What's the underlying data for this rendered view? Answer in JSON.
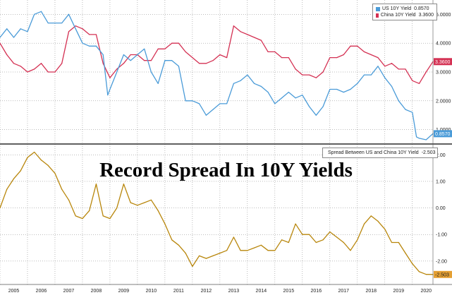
{
  "colors": {
    "us": "#4A9BD8",
    "china": "#D43153",
    "spread": "#B8860B",
    "grid": "#7a7a7a",
    "divider": "#000000",
    "spread_tag": "#E5A033"
  },
  "chart_data": [
    {
      "type": "line",
      "legend_position": "top-right",
      "grid": true,
      "xlim": [
        2005.0,
        2020.75
      ],
      "ylim": [
        0.6,
        5.4
      ],
      "y_ticks": [
        5.0,
        4.0,
        3.0,
        2.0,
        1.0
      ],
      "y_tick_labels": [
        "5.0000",
        "4.0000",
        "3.0000",
        "2.0000",
        "1.0000"
      ],
      "series": [
        {
          "name": "US 10Y Yield",
          "last_value": "0.8570",
          "last_tag": "0.8570",
          "x": [
            2005.0,
            2005.25,
            2005.5,
            2005.75,
            2006.0,
            2006.25,
            2006.5,
            2006.75,
            2007.0,
            2007.25,
            2007.5,
            2007.75,
            2008.0,
            2008.25,
            2008.5,
            2008.75,
            2008.92,
            2009.0,
            2009.25,
            2009.5,
            2009.75,
            2010.0,
            2010.25,
            2010.5,
            2010.75,
            2011.0,
            2011.25,
            2011.5,
            2011.75,
            2012.0,
            2012.25,
            2012.5,
            2012.75,
            2013.0,
            2013.25,
            2013.5,
            2013.75,
            2014.0,
            2014.25,
            2014.5,
            2014.75,
            2015.0,
            2015.25,
            2015.5,
            2015.75,
            2016.0,
            2016.25,
            2016.5,
            2016.75,
            2017.0,
            2017.25,
            2017.5,
            2017.75,
            2018.0,
            2018.25,
            2018.5,
            2018.75,
            2019.0,
            2019.25,
            2019.5,
            2019.75,
            2020.0,
            2020.15,
            2020.25,
            2020.5,
            2020.75
          ],
          "y": [
            4.2,
            4.5,
            4.2,
            4.5,
            4.4,
            5.0,
            5.1,
            4.7,
            4.7,
            4.7,
            5.0,
            4.5,
            4.0,
            3.9,
            3.9,
            3.6,
            2.2,
            2.4,
            3.0,
            3.6,
            3.4,
            3.6,
            3.8,
            3.0,
            2.6,
            3.4,
            3.4,
            3.2,
            2.0,
            2.0,
            1.9,
            1.5,
            1.7,
            1.9,
            1.9,
            2.6,
            2.7,
            2.9,
            2.6,
            2.5,
            2.3,
            1.9,
            2.1,
            2.3,
            2.1,
            2.2,
            1.8,
            1.5,
            1.8,
            2.4,
            2.4,
            2.3,
            2.4,
            2.6,
            2.9,
            2.9,
            3.2,
            2.8,
            2.5,
            2.0,
            1.7,
            1.6,
            0.75,
            0.7,
            0.65,
            0.86
          ]
        },
        {
          "name": "China 10Y Yield",
          "last_value": "3.3600",
          "last_tag": "3.3600",
          "x": [
            2005.0,
            2005.25,
            2005.5,
            2005.75,
            2006.0,
            2006.25,
            2006.5,
            2006.75,
            2007.0,
            2007.25,
            2007.5,
            2007.75,
            2008.0,
            2008.25,
            2008.5,
            2008.75,
            2009.0,
            2009.25,
            2009.5,
            2009.75,
            2010.0,
            2010.25,
            2010.5,
            2010.75,
            2011.0,
            2011.25,
            2011.5,
            2011.75,
            2012.0,
            2012.25,
            2012.5,
            2012.75,
            2013.0,
            2013.25,
            2013.5,
            2013.75,
            2014.0,
            2014.25,
            2014.5,
            2014.75,
            2015.0,
            2015.25,
            2015.5,
            2015.75,
            2016.0,
            2016.25,
            2016.5,
            2016.75,
            2017.0,
            2017.25,
            2017.5,
            2017.75,
            2018.0,
            2018.25,
            2018.5,
            2018.75,
            2019.0,
            2019.25,
            2019.5,
            2019.75,
            2020.0,
            2020.25,
            2020.5,
            2020.75
          ],
          "y": [
            4.0,
            3.6,
            3.3,
            3.2,
            3.0,
            3.1,
            3.3,
            3.0,
            3.0,
            3.3,
            4.4,
            4.6,
            4.5,
            4.3,
            4.3,
            3.3,
            2.8,
            3.1,
            3.3,
            3.6,
            3.6,
            3.4,
            3.4,
            3.8,
            3.8,
            4.0,
            4.0,
            3.7,
            3.5,
            3.3,
            3.3,
            3.4,
            3.6,
            3.5,
            4.6,
            4.4,
            4.3,
            4.2,
            4.1,
            3.7,
            3.7,
            3.5,
            3.5,
            3.1,
            2.9,
            2.9,
            2.8,
            3.0,
            3.5,
            3.5,
            3.6,
            3.9,
            3.9,
            3.7,
            3.6,
            3.5,
            3.2,
            3.3,
            3.1,
            3.1,
            2.7,
            2.6,
            3.0,
            3.36
          ]
        }
      ]
    },
    {
      "type": "line",
      "title": "Record Spread In 10Y Yields",
      "legend_position": "top-right",
      "grid": true,
      "xlim": [
        2005.0,
        2020.75
      ],
      "ylim": [
        -2.8,
        2.3
      ],
      "x_tick_labels": [
        "2005",
        "2006",
        "2007",
        "2008",
        "2009",
        "2010",
        "2011",
        "2012",
        "2013",
        "2014",
        "2015",
        "2016",
        "2017",
        "2018",
        "2019",
        "2020"
      ],
      "y_ticks": [
        2.0,
        1.0,
        0.0,
        -1.0,
        -2.0
      ],
      "y_tick_labels": [
        "2.00",
        "1.00",
        "0.00",
        "-1.00",
        "-2.00"
      ],
      "series": [
        {
          "name": "Spread Between US and China 10Y Yield",
          "last_value": "-2.503",
          "last_tag": "-2.503",
          "x": [
            2005.0,
            2005.25,
            2005.5,
            2005.75,
            2006.0,
            2006.25,
            2006.5,
            2006.75,
            2007.0,
            2007.25,
            2007.5,
            2007.75,
            2008.0,
            2008.25,
            2008.5,
            2008.75,
            2009.0,
            2009.25,
            2009.5,
            2009.75,
            2010.0,
            2010.25,
            2010.5,
            2010.75,
            2011.0,
            2011.25,
            2011.5,
            2011.75,
            2012.0,
            2012.25,
            2012.5,
            2012.75,
            2013.0,
            2013.25,
            2013.5,
            2013.75,
            2014.0,
            2014.25,
            2014.5,
            2014.75,
            2015.0,
            2015.25,
            2015.5,
            2015.75,
            2016.0,
            2016.25,
            2016.5,
            2016.75,
            2017.0,
            2017.25,
            2017.5,
            2017.75,
            2018.0,
            2018.25,
            2018.5,
            2018.75,
            2019.0,
            2019.25,
            2019.5,
            2019.75,
            2020.0,
            2020.25,
            2020.5,
            2020.75
          ],
          "y": [
            0.0,
            0.7,
            1.1,
            1.4,
            1.9,
            2.1,
            1.8,
            1.6,
            1.3,
            0.7,
            0.3,
            -0.3,
            -0.4,
            -0.1,
            0.9,
            -0.3,
            -0.4,
            0.0,
            0.9,
            0.2,
            0.1,
            0.2,
            0.3,
            -0.1,
            -0.6,
            -1.2,
            -1.4,
            -1.7,
            -2.2,
            -1.8,
            -1.9,
            -1.8,
            -1.7,
            -1.6,
            -1.1,
            -1.6,
            -1.6,
            -1.5,
            -1.4,
            -1.6,
            -1.6,
            -1.2,
            -1.3,
            -0.6,
            -1.0,
            -1.0,
            -1.3,
            -1.2,
            -0.9,
            -1.1,
            -1.3,
            -1.6,
            -1.2,
            -0.6,
            -0.3,
            -0.5,
            -0.8,
            -1.3,
            -1.3,
            -1.7,
            -2.1,
            -2.4,
            -2.5,
            -2.503
          ]
        }
      ]
    }
  ]
}
